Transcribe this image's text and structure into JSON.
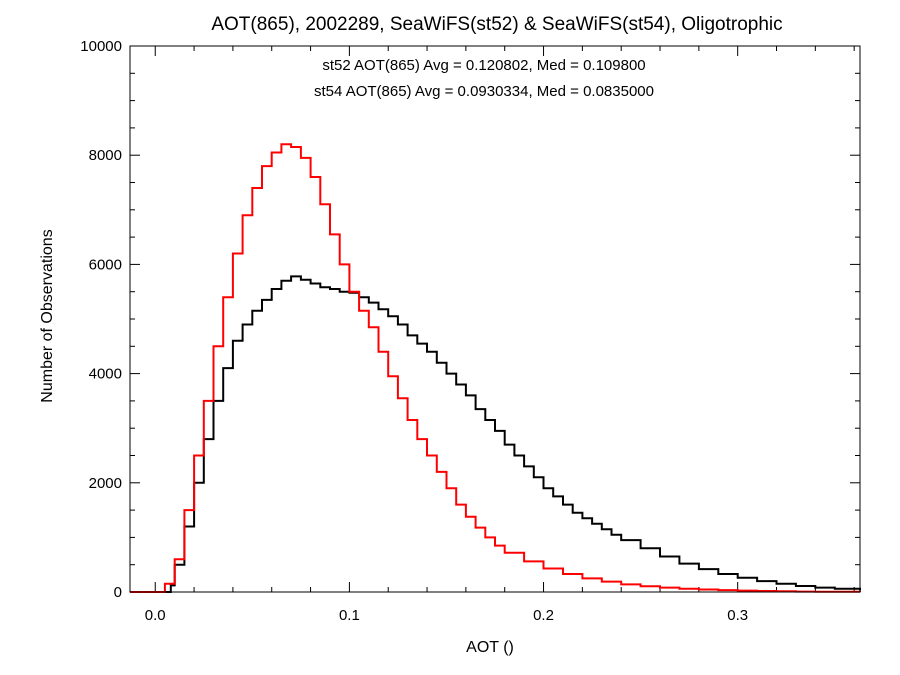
{
  "chart_data": {
    "type": "line",
    "title": "AOT(865), 2002289, SeaWiFS(st52) & SeaWiFS(st54), Oligotrophic",
    "xlabel": "AOT ()",
    "ylabel": "Number of Observations",
    "xlim": [
      -0.013,
      0.363
    ],
    "ylim": [
      0,
      10000
    ],
    "x_ticks": [
      0.0,
      0.1,
      0.2,
      0.3
    ],
    "x_tick_labels": [
      "0.0",
      "0.1",
      "0.2",
      "0.3"
    ],
    "y_ticks": [
      0,
      2000,
      4000,
      6000,
      8000,
      10000
    ],
    "y_tick_labels": [
      "0",
      "2000",
      "4000",
      "6000",
      "8000",
      "10000"
    ],
    "grid": false,
    "annotations": [
      {
        "text": "st52 AOT(865) Avg = 0.120802, Med = 0.109800",
        "color": "#000000"
      },
      {
        "text": "st54 AOT(865) Avg = 0.0930334, Med = 0.0835000",
        "color": "#ff0000"
      }
    ],
    "series": [
      {
        "color": "#000000",
        "x": [
          -0.013,
          0.0,
          0.005,
          0.008,
          0.01,
          0.015,
          0.02,
          0.025,
          0.03,
          0.035,
          0.04,
          0.045,
          0.05,
          0.055,
          0.06,
          0.065,
          0.07,
          0.075,
          0.08,
          0.085,
          0.09,
          0.095,
          0.1,
          0.105,
          0.11,
          0.115,
          0.12,
          0.125,
          0.13,
          0.135,
          0.14,
          0.145,
          0.15,
          0.155,
          0.16,
          0.165,
          0.17,
          0.175,
          0.18,
          0.185,
          0.19,
          0.195,
          0.2,
          0.205,
          0.21,
          0.215,
          0.22,
          0.225,
          0.23,
          0.235,
          0.24,
          0.25,
          0.26,
          0.27,
          0.28,
          0.29,
          0.3,
          0.31,
          0.32,
          0.33,
          0.34,
          0.35,
          0.363
        ],
        "values": [
          0,
          0,
          0,
          120,
          500,
          1200,
          2000,
          2800,
          3500,
          4100,
          4600,
          4900,
          5150,
          5350,
          5550,
          5700,
          5780,
          5720,
          5650,
          5580,
          5550,
          5500,
          5480,
          5400,
          5300,
          5180,
          5050,
          4900,
          4700,
          4550,
          4400,
          4200,
          4000,
          3800,
          3600,
          3350,
          3150,
          2950,
          2700,
          2500,
          2300,
          2100,
          1900,
          1750,
          1600,
          1450,
          1350,
          1250,
          1150,
          1050,
          950,
          800,
          650,
          520,
          420,
          330,
          260,
          200,
          150,
          110,
          80,
          60,
          30
        ]
      },
      {
        "color": "#ff0000",
        "x": [
          -0.013,
          0.0,
          0.005,
          0.01,
          0.015,
          0.02,
          0.025,
          0.03,
          0.035,
          0.04,
          0.045,
          0.05,
          0.055,
          0.06,
          0.065,
          0.07,
          0.075,
          0.08,
          0.085,
          0.09,
          0.095,
          0.1,
          0.105,
          0.11,
          0.115,
          0.12,
          0.125,
          0.13,
          0.135,
          0.14,
          0.145,
          0.15,
          0.155,
          0.16,
          0.165,
          0.17,
          0.175,
          0.18,
          0.19,
          0.2,
          0.21,
          0.22,
          0.23,
          0.24,
          0.25,
          0.26,
          0.27,
          0.28,
          0.29,
          0.3,
          0.31,
          0.32,
          0.33,
          0.34,
          0.35,
          0.363
        ],
        "values": [
          0,
          0,
          150,
          600,
          1500,
          2500,
          3500,
          4500,
          5400,
          6200,
          6900,
          7400,
          7800,
          8050,
          8200,
          8150,
          7950,
          7600,
          7100,
          6550,
          6000,
          5500,
          5150,
          4850,
          4400,
          3950,
          3550,
          3150,
          2800,
          2500,
          2200,
          1900,
          1600,
          1380,
          1180,
          1000,
          850,
          720,
          560,
          430,
          330,
          250,
          190,
          140,
          105,
          80,
          60,
          45,
          35,
          25,
          18,
          12,
          8,
          5,
          3,
          2
        ]
      }
    ]
  }
}
